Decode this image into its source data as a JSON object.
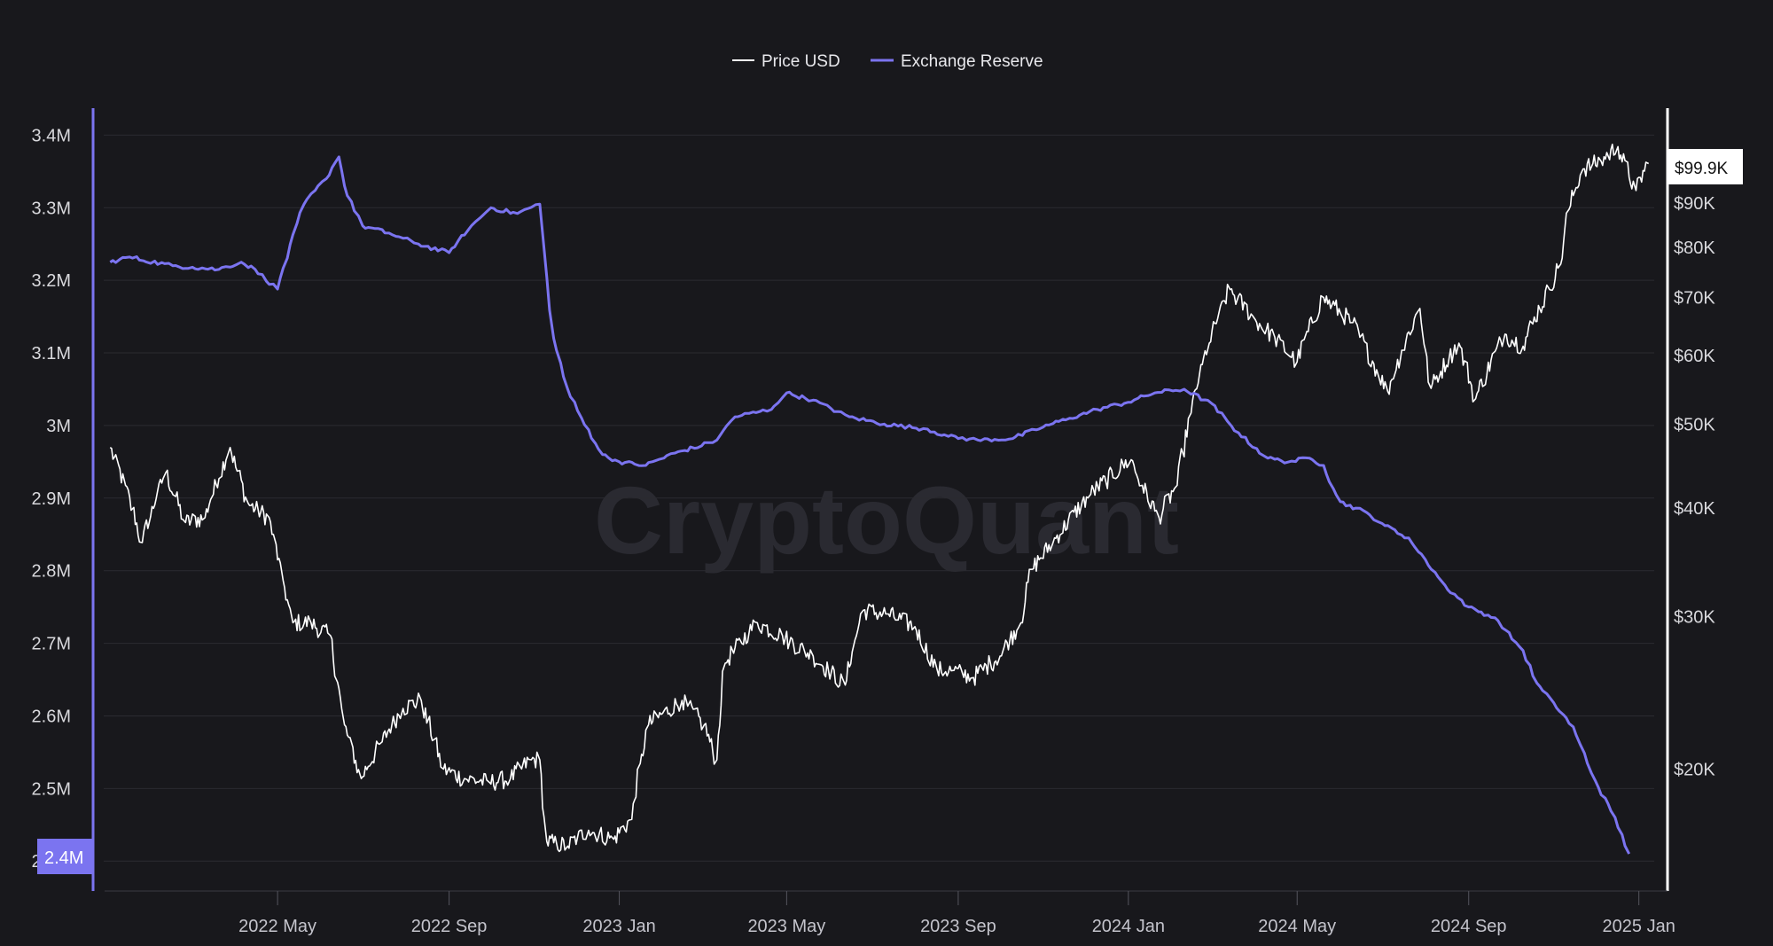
{
  "watermark": "CryptoQuant",
  "chart_data": {
    "type": "line",
    "legend": {
      "placement": "top-center",
      "items": [
        {
          "name": "Price USD",
          "color": "#ffffff"
        },
        {
          "name": "Exchange Reserve",
          "color": "#7b74f0"
        }
      ]
    },
    "left_axis": {
      "ticks": [
        "3.4M",
        "3.3M",
        "3.2M",
        "3.1M",
        "3M",
        "2.9M",
        "2.8M",
        "2.7M",
        "2.6M",
        "2.5M",
        "2.4M"
      ],
      "tick_values": [
        3400000,
        3300000,
        3200000,
        3100000,
        3000000,
        2900000,
        2800000,
        2700000,
        2600000,
        2500000,
        2400000
      ],
      "ylim": [
        2360000,
        3420000
      ],
      "current_value_badge": "2.4M"
    },
    "right_axis": {
      "scale": "log",
      "ticks": [
        "$90K",
        "$80K",
        "$70K",
        "$60K",
        "$50K",
        "$40K",
        "$30K",
        "$20K"
      ],
      "tick_values": [
        90000,
        80000,
        70000,
        60000,
        50000,
        40000,
        30000,
        20000
      ],
      "ylim": [
        14500,
        112000
      ],
      "current_value_badge": "$99.9K"
    },
    "x_axis": {
      "ticks": [
        "2022 May",
        "2022 Sep",
        "2023 Jan",
        "2023 May",
        "2023 Sep",
        "2024 Jan",
        "2024 May",
        "2024 Sep",
        "2025 Jan"
      ],
      "tick_dates": [
        "2022-05-01",
        "2022-09-01",
        "2023-01-01",
        "2023-05-01",
        "2023-09-01",
        "2024-01-01",
        "2024-05-01",
        "2024-09-01",
        "2025-01-01"
      ],
      "range": [
        "2021-12-28",
        "2025-01-12"
      ]
    },
    "grid": true,
    "series": [
      {
        "name": "Price USD",
        "axis": "right",
        "color": "#ffffff",
        "x": [
          "2022-01-01",
          "2022-01-12",
          "2022-01-24",
          "2022-02-10",
          "2022-02-24",
          "2022-03-10",
          "2022-03-28",
          "2022-04-10",
          "2022-04-25",
          "2022-05-05",
          "2022-05-12",
          "2022-05-25",
          "2022-06-08",
          "2022-06-18",
          "2022-06-30",
          "2022-07-15",
          "2022-07-30",
          "2022-08-12",
          "2022-08-28",
          "2022-09-12",
          "2022-09-30",
          "2022-10-15",
          "2022-10-30",
          "2022-11-05",
          "2022-11-10",
          "2022-11-25",
          "2022-12-10",
          "2022-12-28",
          "2023-01-10",
          "2023-01-22",
          "2023-02-15",
          "2023-03-03",
          "2023-03-12",
          "2023-03-18",
          "2023-04-10",
          "2023-04-28",
          "2023-05-20",
          "2023-06-12",
          "2023-06-25",
          "2023-07-13",
          "2023-08-01",
          "2023-08-17",
          "2023-08-29",
          "2023-09-12",
          "2023-10-01",
          "2023-10-16",
          "2023-10-24",
          "2023-11-08",
          "2023-12-05",
          "2024-01-03",
          "2024-01-11",
          "2024-01-23",
          "2024-02-05",
          "2024-02-15",
          "2024-02-28",
          "2024-03-14",
          "2024-04-01",
          "2024-04-15",
          "2024-05-01",
          "2024-05-20",
          "2024-06-10",
          "2024-07-05",
          "2024-07-28",
          "2024-08-05",
          "2024-08-25",
          "2024-09-06",
          "2024-09-27",
          "2024-10-10",
          "2024-10-29",
          "2024-11-06",
          "2024-11-12",
          "2024-11-22",
          "2024-12-05",
          "2024-12-17",
          "2024-12-30",
          "2025-01-08"
        ],
        "values": [
          47000,
          42500,
          36500,
          44000,
          38500,
          39000,
          47000,
          40500,
          39000,
          33000,
          29500,
          29500,
          28500,
          22500,
          19500,
          21500,
          23500,
          24000,
          20000,
          19500,
          19300,
          19500,
          20500,
          20500,
          16500,
          16300,
          17000,
          16600,
          17500,
          22500,
          24000,
          22500,
          20500,
          26500,
          29500,
          28500,
          27000,
          25000,
          30500,
          30200,
          29200,
          26000,
          26000,
          25500,
          27000,
          29500,
          34000,
          36500,
          41500,
          45500,
          42500,
          39000,
          42500,
          51500,
          62000,
          71500,
          66000,
          63000,
          59000,
          70000,
          65500,
          54500,
          68000,
          55000,
          62000,
          53500,
          63500,
          61500,
          71500,
          76500,
          88500,
          98500,
          100500,
          104500,
          93000,
          99900
        ],
        "current_value": 99900
      },
      {
        "name": "Exchange Reserve",
        "axis": "left",
        "color": "#7b74f0",
        "x": [
          "2022-01-01",
          "2022-01-15",
          "2022-02-15",
          "2022-03-01",
          "2022-03-20",
          "2022-04-05",
          "2022-04-15",
          "2022-05-01",
          "2022-05-20",
          "2022-06-05",
          "2022-06-14",
          "2022-06-18",
          "2022-07-01",
          "2022-07-20",
          "2022-08-10",
          "2022-09-01",
          "2022-09-15",
          "2022-10-01",
          "2022-10-20",
          "2022-11-05",
          "2022-11-08",
          "2022-11-15",
          "2022-11-25",
          "2022-12-05",
          "2022-12-20",
          "2023-01-01",
          "2023-01-20",
          "2023-02-10",
          "2023-03-01",
          "2023-03-12",
          "2023-03-25",
          "2023-04-20",
          "2023-05-01",
          "2023-05-20",
          "2023-06-15",
          "2023-07-10",
          "2023-08-10",
          "2023-08-25",
          "2023-09-15",
          "2023-10-10",
          "2023-11-01",
          "2023-11-20",
          "2023-12-10",
          "2024-01-01",
          "2024-01-20",
          "2024-02-10",
          "2024-03-01",
          "2024-03-20",
          "2024-04-10",
          "2024-04-25",
          "2024-05-10",
          "2024-05-20",
          "2024-06-01",
          "2024-06-20",
          "2024-07-01",
          "2024-07-20",
          "2024-08-01",
          "2024-08-15",
          "2024-09-01",
          "2024-09-20",
          "2024-10-10",
          "2024-10-20",
          "2024-11-01",
          "2024-11-15",
          "2024-12-01",
          "2024-12-15",
          "2024-12-25"
        ],
        "values": [
          3225000,
          3232000,
          3220000,
          3218000,
          3215000,
          3225000,
          3215000,
          3188000,
          3305000,
          3340000,
          3370000,
          3330000,
          3275000,
          3265000,
          3250000,
          3238000,
          3270000,
          3300000,
          3292000,
          3305000,
          3245000,
          3120000,
          3050000,
          3010000,
          2960000,
          2950000,
          2945000,
          2962000,
          2972000,
          2980000,
          3012000,
          3022000,
          3045000,
          3035000,
          3012000,
          3002000,
          2995000,
          2985000,
          2980000,
          2982000,
          2998000,
          3010000,
          3022000,
          3032000,
          3045000,
          3050000,
          3030000,
          2990000,
          2955000,
          2950000,
          2955000,
          2945000,
          2895000,
          2880000,
          2865000,
          2845000,
          2815000,
          2780000,
          2750000,
          2735000,
          2690000,
          2645000,
          2618000,
          2585000,
          2510000,
          2460000,
          2410000
        ],
        "current_value": 2410000
      }
    ]
  }
}
